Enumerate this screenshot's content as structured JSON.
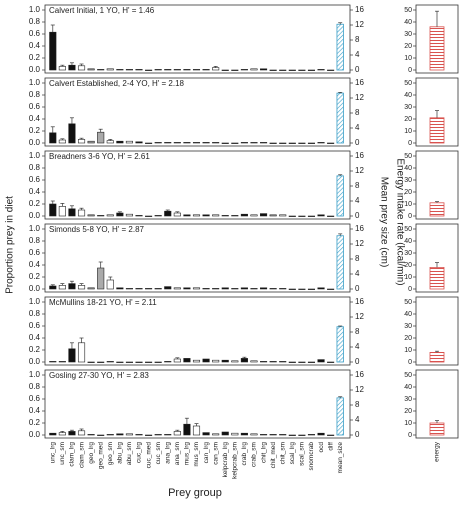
{
  "figure": {
    "ylabel": "Proportion prey in diet",
    "y2label": "Mean prey size (cm)",
    "energy_label": "Energy intake rate (kcal/min)",
    "xlabel": "Prey group",
    "categories": [
      "unc_lrg",
      "unc_sm",
      "clam_lrg",
      "clam_sm",
      "geo_lrg",
      "geo_med",
      "geo_sm",
      "abu_lrg",
      "abu_sm",
      "cuc_lrg",
      "cuc_med",
      "cuc_sm",
      "ana_lrg",
      "ana_sm",
      "mus_lrg",
      "mus_sm",
      "can_lrg",
      "can_sm",
      "kelpcrab_lrg",
      "kelpcrab_sm",
      "crab_lrg",
      "crab_sm",
      "chit_lrg",
      "chit_med",
      "chit_sm",
      "scal_lrg",
      "scal_sm",
      "snomcrab",
      "ocd",
      "diff",
      "mean_size"
    ],
    "energy_category": "energy",
    "category_colors": [
      "#111111",
      "#ffffff",
      "#111111",
      "#ffffff",
      "#aaaaaa",
      "#aaaaaa",
      "#ffffff",
      "#111111",
      "#ffffff",
      "#111111",
      "#aaaaaa",
      "#ffffff",
      "#111111",
      "#ffffff",
      "#111111",
      "#ffffff",
      "#111111",
      "#ffffff",
      "#111111",
      "#ffffff",
      "#111111",
      "#ffffff",
      "#111111",
      "#aaaaaa",
      "#ffffff",
      "#111111",
      "#ffffff",
      "#111111",
      "#111111",
      "#ffffff"
    ],
    "size_color": "#3a9fc8",
    "energy_color": "#d9534f",
    "ylim": [
      0,
      1
    ],
    "yticks": [
      {
        "value": 0,
        "label": "0.0"
      },
      {
        "value": 0.2,
        "label": "0.2"
      },
      {
        "value": 0.4,
        "label": "0.4"
      },
      {
        "value": 0.6,
        "label": "0.6"
      },
      {
        "value": 0.8,
        "label": "0.8"
      },
      {
        "value": 1,
        "label": "1.0"
      }
    ],
    "y2lim": [
      0,
      16
    ],
    "y2ticks": [
      0,
      4,
      8,
      12,
      16
    ],
    "energy_lim": [
      0,
      50
    ],
    "energy_ticks": [
      0,
      10,
      20,
      30,
      40,
      50
    ]
  },
  "chart_data": [
    {
      "type": "bar",
      "title": "Calvert Initial, 1 YO, H' = 1.46",
      "values": [
        0.63,
        0.06,
        0.08,
        0.07,
        0.02,
        0.01,
        0.02,
        0.01,
        0.01,
        0.01,
        0,
        0.01,
        0.01,
        0.01,
        0.01,
        0.01,
        0.01,
        0.04,
        0,
        0,
        0.01,
        0.02,
        0.02,
        0,
        0,
        0,
        0,
        0,
        0.01,
        0
      ],
      "errors": [
        0.12,
        0.02,
        0.04,
        0.03,
        null,
        null,
        null,
        null,
        null,
        null,
        null,
        null,
        null,
        null,
        null,
        null,
        null,
        0.02,
        null,
        null,
        null,
        null,
        null,
        null,
        null,
        null,
        null,
        null,
        null,
        null
      ],
      "mean_size": 12.2,
      "mean_size_error": 0.4,
      "energy": 36,
      "energy_error": 13
    },
    {
      "type": "bar",
      "title": "Calvert Established, 2-4 YO, H' = 2.18",
      "values": [
        0.17,
        0.05,
        0.32,
        0.06,
        0.03,
        0.18,
        0.04,
        0.03,
        0.03,
        0.02,
        0,
        0.01,
        0.01,
        0.01,
        0.01,
        0.01,
        0.01,
        0.01,
        0,
        0,
        0.01,
        0.01,
        0.01,
        0,
        0,
        0,
        0,
        0,
        0.01,
        0
      ],
      "errors": [
        0.1,
        0.02,
        0.1,
        0.02,
        null,
        0.05,
        0.02,
        null,
        null,
        null,
        null,
        null,
        null,
        null,
        null,
        null,
        null,
        null,
        null,
        null,
        null,
        null,
        null,
        null,
        null,
        null,
        null,
        null,
        null,
        null
      ],
      "mean_size": 13.3,
      "mean_size_error": 0.2,
      "energy": 21,
      "energy_error": 6
    },
    {
      "type": "bar",
      "title": "Breadners 3-6 YO, H' = 2.61",
      "values": [
        0.2,
        0.16,
        0.12,
        0.1,
        0.02,
        0.01,
        0.02,
        0.05,
        0.03,
        0.01,
        0,
        0.01,
        0.08,
        0.05,
        0.02,
        0.02,
        0.02,
        0.02,
        0.01,
        0.01,
        0.03,
        0.02,
        0.04,
        0.02,
        0.02,
        0,
        0,
        0,
        0.02,
        0
      ],
      "errors": [
        0.05,
        0.05,
        0.05,
        0.03,
        null,
        null,
        null,
        0.02,
        null,
        null,
        null,
        null,
        0.02,
        0.02,
        null,
        null,
        null,
        null,
        null,
        null,
        null,
        null,
        null,
        null,
        null,
        null,
        null,
        null,
        null,
        null
      ],
      "mean_size": 10.7,
      "mean_size_error": 0.3,
      "energy": 11,
      "energy_error": 1
    },
    {
      "type": "bar",
      "title": "Simonds 5-8 YO, H' = 2.87",
      "values": [
        0.05,
        0.06,
        0.09,
        0.06,
        0.02,
        0.35,
        0.15,
        0.02,
        0.01,
        0.01,
        0.01,
        0.01,
        0.04,
        0.02,
        0.02,
        0.02,
        0.01,
        0.01,
        0.02,
        0.01,
        0.02,
        0.01,
        0.02,
        0.01,
        0.01,
        0,
        0,
        0,
        0.02,
        0
      ],
      "errors": [
        0.02,
        0.03,
        0.04,
        0.03,
        null,
        0.1,
        0.05,
        null,
        null,
        null,
        null,
        null,
        null,
        null,
        null,
        null,
        null,
        null,
        null,
        null,
        null,
        null,
        null,
        null,
        null,
        null,
        null,
        null,
        null,
        null
      ],
      "mean_size": 14.2,
      "mean_size_error": 0.5,
      "energy": 18,
      "energy_error": 4
    },
    {
      "type": "bar",
      "title": "McMullins 18-21 YO, H' = 2.11",
      "values": [
        0.01,
        0.01,
        0.22,
        0.32,
        0,
        0,
        0.01,
        0,
        0,
        0,
        0,
        0,
        0.01,
        0.05,
        0.06,
        0.03,
        0.05,
        0.03,
        0.03,
        0.02,
        0.06,
        0.02,
        0.01,
        0.01,
        0.01,
        0,
        0,
        0,
        0.04,
        0
      ],
      "errors": [
        null,
        null,
        0.1,
        0.08,
        null,
        null,
        null,
        null,
        null,
        null,
        null,
        null,
        null,
        0.02,
        null,
        null,
        null,
        null,
        null,
        null,
        0.02,
        null,
        null,
        null,
        null,
        null,
        null,
        null,
        null,
        null
      ],
      "mean_size": 9.4,
      "mean_size_error": 0.2,
      "energy": 8,
      "energy_error": 1
    },
    {
      "type": "bar",
      "title": "Gosling 27-30 YO, H' = 2.83",
      "values": [
        0.03,
        0.04,
        0.06,
        0.07,
        0.01,
        0,
        0.01,
        0.02,
        0.02,
        0.01,
        0,
        0.01,
        0.01,
        0.06,
        0.18,
        0.15,
        0.04,
        0.02,
        0.05,
        0.03,
        0.03,
        0.02,
        0.01,
        0.01,
        0.01,
        0,
        0,
        0.01,
        0.03,
        0
      ],
      "errors": [
        null,
        0.02,
        0.02,
        0.03,
        null,
        null,
        null,
        null,
        null,
        null,
        null,
        null,
        null,
        0.02,
        0.1,
        0.04,
        null,
        null,
        null,
        null,
        null,
        null,
        null,
        null,
        null,
        null,
        null,
        null,
        null,
        null
      ],
      "mean_size": 9.9,
      "mean_size_error": 0.3,
      "energy": 10,
      "energy_error": 2
    }
  ]
}
